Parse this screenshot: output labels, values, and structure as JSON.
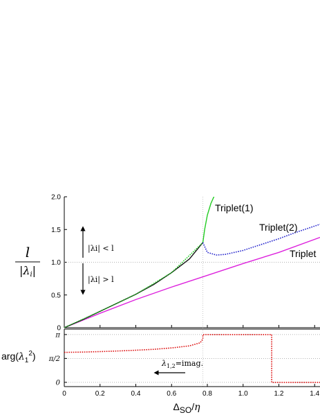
{
  "chart_data": [
    {
      "type": "line",
      "panel": "top",
      "ylabel": "l / |λi|",
      "ylim": [
        0,
        2.0
      ],
      "xlim": [
        0,
        1.43
      ],
      "y_ticks": [
        "0",
        "0.5",
        "1.0",
        "1.5",
        "2.0"
      ],
      "y_tick_values": [
        0,
        0.5,
        1.0,
        1.5,
        2.0
      ],
      "reference_lines": {
        "y": 1.0,
        "x": 0.775
      },
      "annotations": {
        "above": "|λi| < l",
        "below": "|λi| > l"
      },
      "series": [
        {
          "name": "Triplet(1)",
          "color": "#22cc22",
          "style": "solid",
          "x": [
            0.775,
            0.785,
            0.8,
            0.82,
            0.845
          ],
          "y": [
            1.3,
            1.5,
            1.72,
            1.9,
            2.05
          ]
        },
        {
          "name": "Triplet(2)",
          "color": "#2222cc",
          "style": "dotted",
          "x": [
            0.775,
            0.8,
            0.85,
            0.9,
            1.0,
            1.1,
            1.2,
            1.3,
            1.43
          ],
          "y": [
            1.3,
            1.15,
            1.11,
            1.12,
            1.18,
            1.27,
            1.36,
            1.46,
            1.58
          ]
        },
        {
          "name": "Triplet",
          "color": "#dd22dd",
          "style": "solid",
          "x": [
            0,
            0.2,
            0.4,
            0.6,
            0.8,
            1.0,
            1.2,
            1.43
          ],
          "y": [
            0,
            0.22,
            0.43,
            0.62,
            0.8,
            0.98,
            1.15,
            1.38
          ]
        },
        {
          "name": "",
          "color": "#111111",
          "style": "solid",
          "x": [
            0,
            0.1,
            0.2,
            0.3,
            0.4,
            0.5,
            0.6,
            0.7,
            0.775
          ],
          "y": [
            0,
            0.12,
            0.25,
            0.38,
            0.51,
            0.66,
            0.84,
            1.05,
            1.3
          ]
        },
        {
          "name": "",
          "color": "#22cc22",
          "style": "dotted",
          "x": [
            0,
            0.2,
            0.4,
            0.6,
            0.775
          ],
          "y": [
            0,
            0.25,
            0.51,
            0.84,
            1.3
          ]
        }
      ]
    },
    {
      "type": "line",
      "panel": "bottom",
      "xlabel": "ΔSO/η",
      "ylabel": "arg(λ1²)",
      "xlim": [
        0,
        1.43
      ],
      "ylim": [
        -0.28,
        3.5
      ],
      "x_ticks": [
        "0",
        "0.2",
        "0.4",
        "0.6",
        "0.8",
        "1.0",
        "1.2",
        "1.4"
      ],
      "x_tick_values": [
        0,
        0.2,
        0.4,
        0.6,
        0.8,
        1.0,
        1.2,
        1.4
      ],
      "y_ticks": [
        "0",
        "π/2",
        "π"
      ],
      "y_tick_values": [
        0,
        1.5708,
        3.1416
      ],
      "annotation": "λ1,2=imag.",
      "series": [
        {
          "name": "",
          "color": "#dd1111",
          "style": "dotted",
          "x": [
            0,
            0.1,
            0.2,
            0.3,
            0.4,
            0.5,
            0.6,
            0.7,
            0.76,
            0.775,
            0.775,
            1.16,
            1.16,
            1.43
          ],
          "y": [
            1.97,
            1.99,
            2.02,
            2.06,
            2.11,
            2.17,
            2.26,
            2.4,
            2.6,
            2.85,
            3.1416,
            3.1416,
            0,
            0
          ]
        }
      ]
    }
  ]
}
